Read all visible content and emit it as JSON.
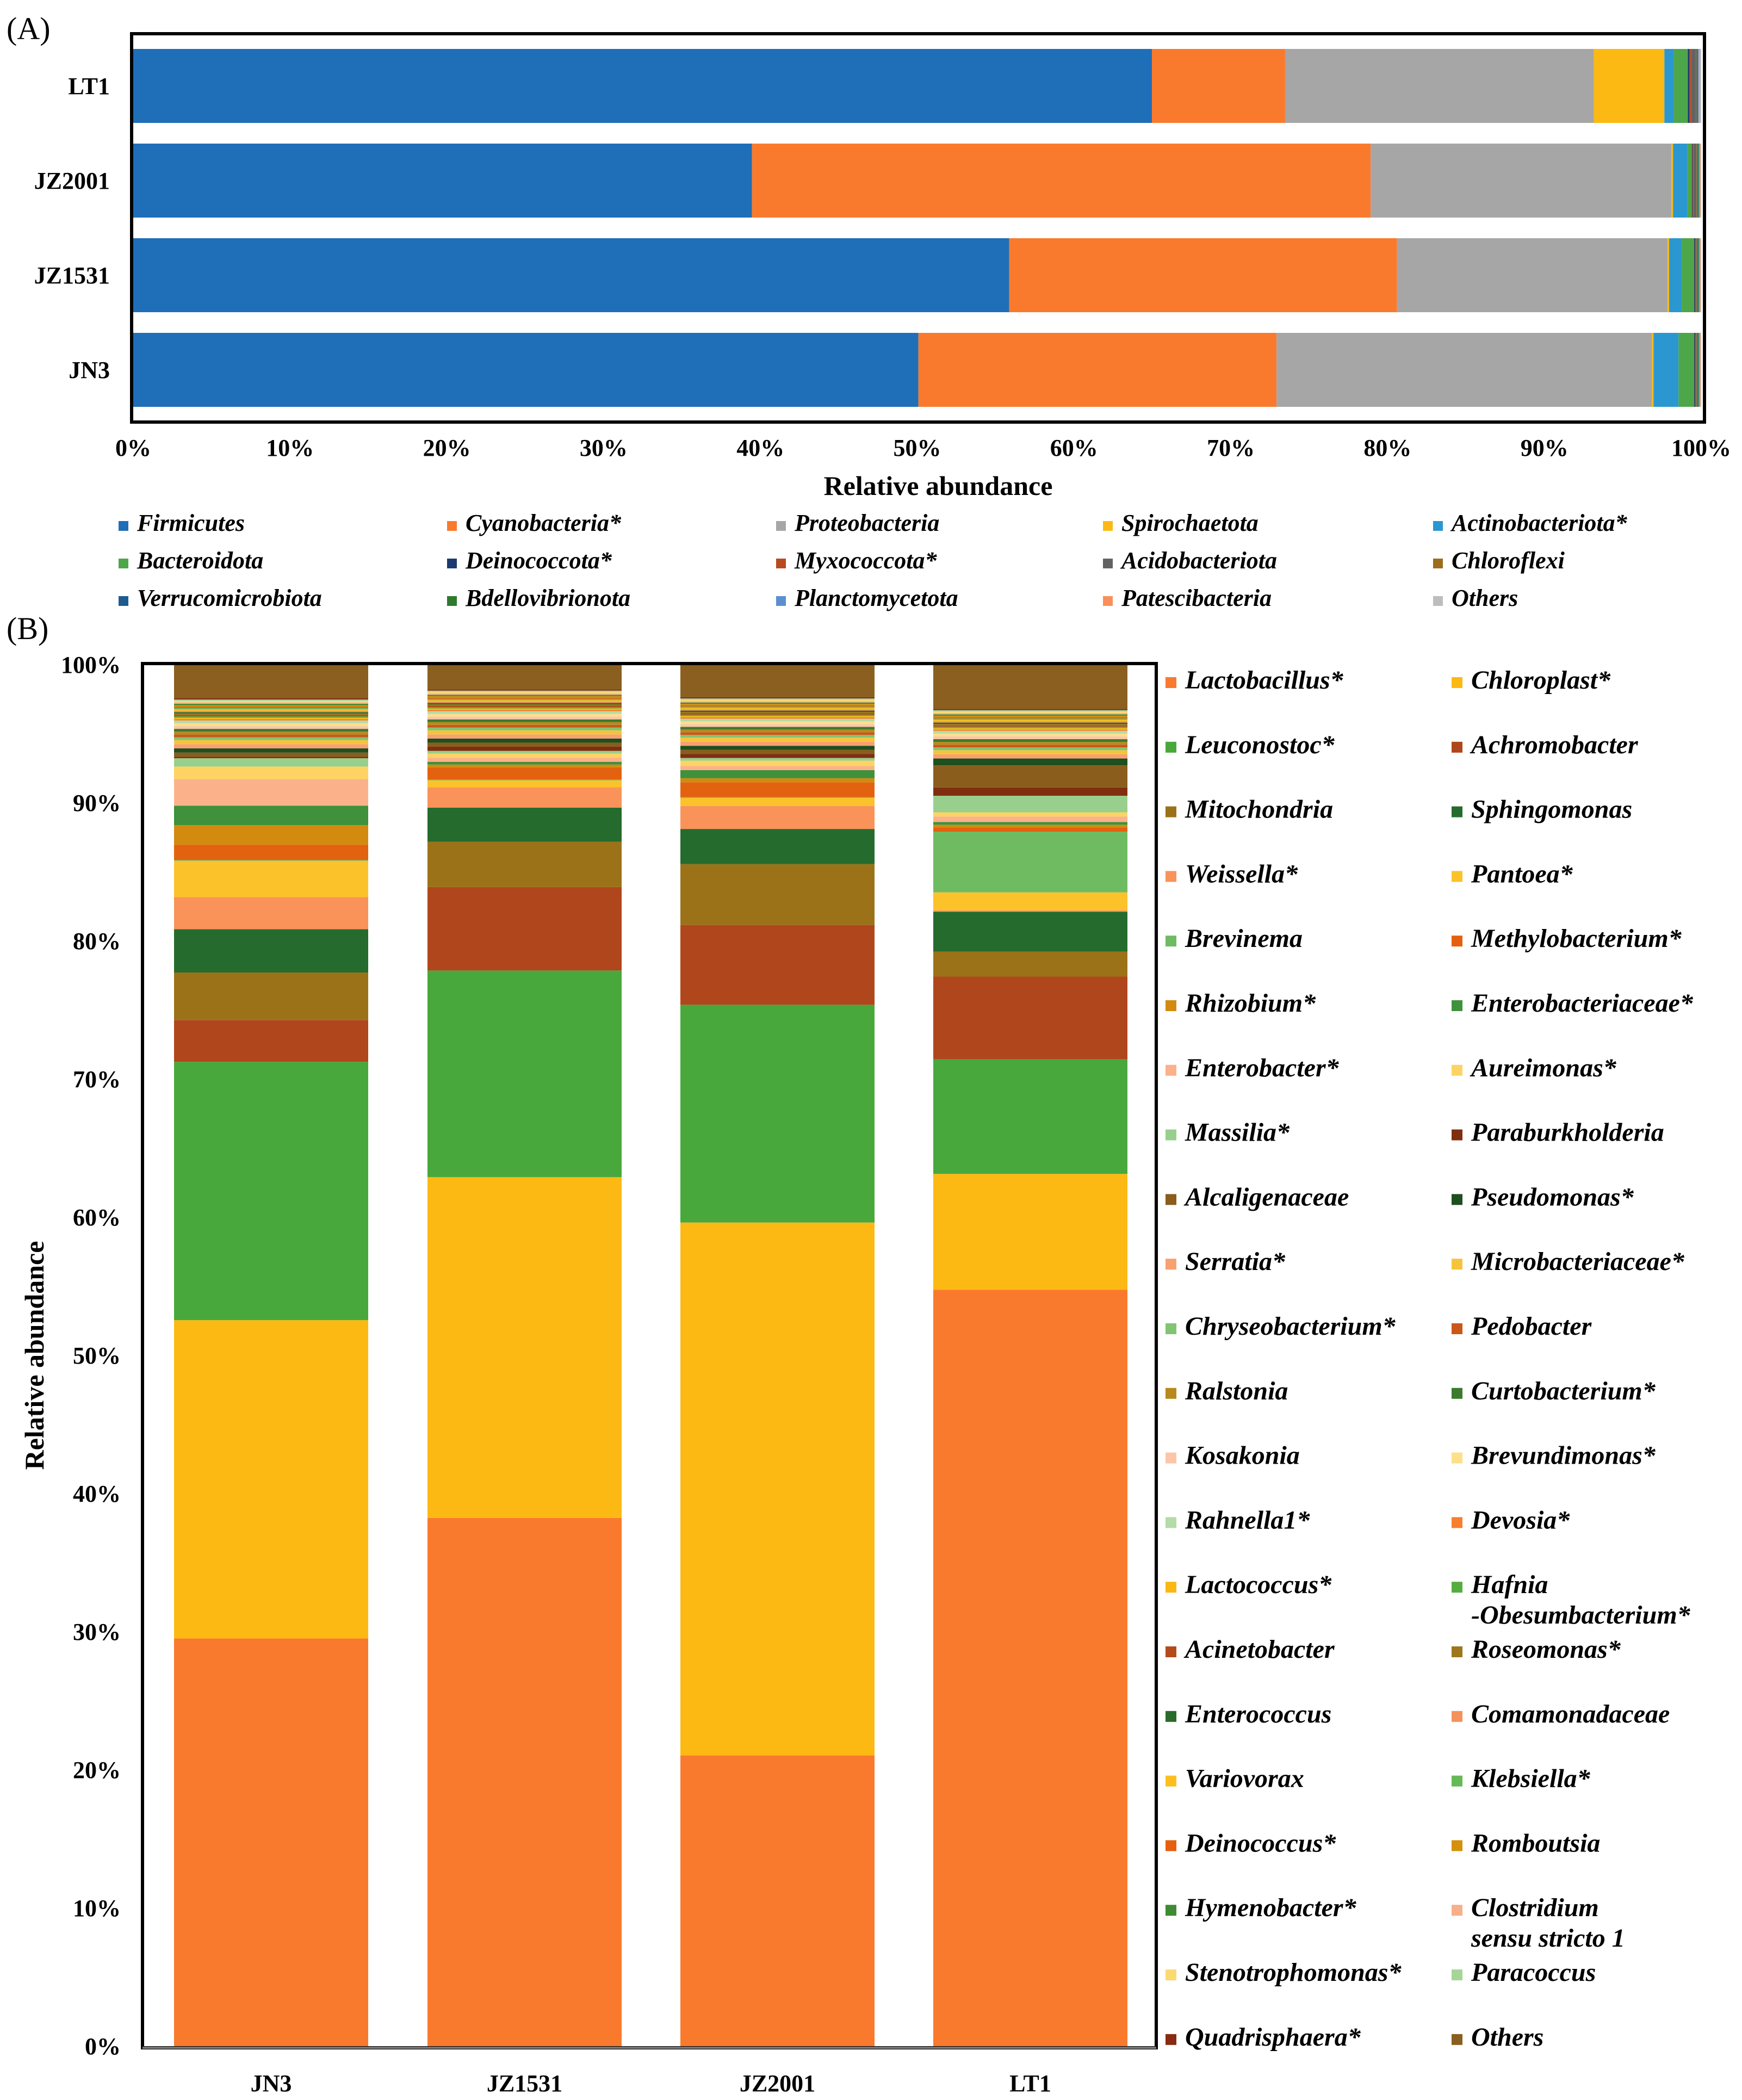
{
  "chart_data": [
    {
      "panel": "(A)",
      "type": "bar",
      "orientation": "horizontal",
      "stacked": true,
      "xlabel": "Relative abundance",
      "xlim": [
        0,
        100
      ],
      "xticks": [
        "0%",
        "10%",
        "20%",
        "30%",
        "40%",
        "50%",
        "60%",
        "70%",
        "80%",
        "90%",
        "100%"
      ],
      "categories": [
        "LT1",
        "JZ2001",
        "JZ1531",
        "JN3"
      ],
      "series": [
        {
          "name": "Firmicutes",
          "color": "#1f6eb8",
          "values": [
            65.0,
            39.5,
            56.0,
            50.2
          ]
        },
        {
          "name": "Cyanobacteria*",
          "color": "#f97a2d",
          "values": [
            8.5,
            39.5,
            24.8,
            22.9
          ]
        },
        {
          "name": "Proteobacteria",
          "color": "#a6a6a6",
          "values": [
            19.7,
            19.2,
            17.3,
            24.0
          ]
        },
        {
          "name": "Spirochaetota",
          "color": "#fdb913",
          "values": [
            4.5,
            0.1,
            0.1,
            0.1
          ]
        },
        {
          "name": "Actinobacteriota*",
          "color": "#2b97d1",
          "values": [
            0.6,
            0.9,
            0.8,
            1.6
          ]
        },
        {
          "name": "Bacteroidota",
          "color": "#4ea64a",
          "values": [
            0.9,
            0.3,
            0.8,
            1.0
          ]
        },
        {
          "name": "Deinococcota*",
          "color": "#1b3b6f",
          "values": [
            0.1,
            0.05,
            0.05,
            0.05
          ]
        },
        {
          "name": "Myxococcota*",
          "color": "#b84a1f",
          "values": [
            0.1,
            0.05,
            0.05,
            0.05
          ]
        },
        {
          "name": "Acidobacteriota",
          "color": "#636363",
          "values": [
            0.3,
            0.2,
            0.05,
            0.05
          ]
        },
        {
          "name": "Chloroflexi",
          "color": "#9b6d1c",
          "values": [
            0.05,
            0.05,
            0.05,
            0.05
          ]
        },
        {
          "name": "Verrucomicrobiota",
          "color": "#1e5c8f",
          "values": [
            0.05,
            0.05,
            0.05,
            0.05
          ]
        },
        {
          "name": "Bdellovibrionota",
          "color": "#2e7a2e",
          "values": [
            0.05,
            0.05,
            0.05,
            0.05
          ]
        },
        {
          "name": "Planctomycetota",
          "color": "#5b8fd0",
          "values": [
            0.05,
            0.05,
            0.05,
            0.05
          ]
        },
        {
          "name": "Patescibacteria",
          "color": "#fb8f5a",
          "values": [
            0.05,
            0.05,
            0.05,
            0.05
          ]
        },
        {
          "name": "Others",
          "color": "#bdbdbd",
          "values": [
            0.1,
            0.05,
            0.05,
            0.05
          ]
        }
      ]
    },
    {
      "panel": "(B)",
      "type": "bar",
      "orientation": "vertical",
      "stacked": true,
      "ylabel": "Relative abundance",
      "ylim": [
        0,
        100
      ],
      "yticks": [
        "0%",
        "10%",
        "20%",
        "30%",
        "40%",
        "50%",
        "60%",
        "70%",
        "80%",
        "90%",
        "100%"
      ],
      "categories": [
        "JN3",
        "JZ1531",
        "JZ2001",
        "LT1"
      ],
      "series": [
        {
          "name": "Lactobacillus*",
          "color": "#f97a2d",
          "values": [
            29.2,
            38.6,
            21.5,
            54.8
          ]
        },
        {
          "name": "Chloroplast*",
          "color": "#fdb913",
          "values": [
            22.8,
            24.9,
            39.4,
            8.4
          ]
        },
        {
          "name": "Leuconostoc*",
          "color": "#48a83c",
          "values": [
            18.5,
            15.1,
            16.1,
            8.3
          ]
        },
        {
          "name": "Achromobacter",
          "color": "#b0461c",
          "values": [
            3.0,
            6.1,
            5.9,
            6.0
          ]
        },
        {
          "name": "Mitochondria",
          "color": "#9c7218",
          "values": [
            3.4,
            3.3,
            4.5,
            1.8
          ]
        },
        {
          "name": "Sphingomonas",
          "color": "#256b2e",
          "values": [
            3.1,
            2.5,
            2.6,
            2.9
          ]
        },
        {
          "name": "Weissella*",
          "color": "#fa935a",
          "values": [
            2.3,
            1.5,
            1.7,
            0.1
          ]
        },
        {
          "name": "Pantoea*",
          "color": "#fcc22a",
          "values": [
            2.6,
            0.5,
            0.6,
            1.3
          ]
        },
        {
          "name": "Brevinema",
          "color": "#6fbb62",
          "values": [
            0.05,
            0.05,
            0.05,
            4.4
          ]
        },
        {
          "name": "Methylobacterium*",
          "color": "#e3620f",
          "values": [
            1.1,
            0.9,
            1.1,
            0.3
          ]
        },
        {
          "name": "Rhizobium*",
          "color": "#d28b0f",
          "values": [
            1.4,
            0.2,
            0.3,
            0.2
          ]
        },
        {
          "name": "Enterobacteriaceae*",
          "color": "#3f913b",
          "values": [
            1.4,
            0.2,
            0.6,
            0.2
          ]
        },
        {
          "name": "Enterobacter*",
          "color": "#fbb28b",
          "values": [
            1.9,
            0.3,
            0.3,
            0.4
          ]
        },
        {
          "name": "Aureimonas*",
          "color": "#fdd464",
          "values": [
            0.9,
            0.3,
            0.4,
            0.3
          ]
        },
        {
          "name": "Massilia*",
          "color": "#99cf8d",
          "values": [
            0.6,
            0.2,
            0.2,
            1.2
          ]
        },
        {
          "name": "Paraburkholderia",
          "color": "#7f2e10",
          "values": [
            0.1,
            0.3,
            0.3,
            0.6
          ]
        },
        {
          "name": "Alcaligenaceae",
          "color": "#8a5d1c",
          "values": [
            0.3,
            0.3,
            0.3,
            1.6
          ]
        },
        {
          "name": "Pseudomonas*",
          "color": "#1e4f1e",
          "values": [
            0.3,
            0.3,
            0.3,
            0.5
          ]
        },
        {
          "name": "Serratia*",
          "color": "#f9a070",
          "values": [
            0.3,
            0.3,
            0.3,
            0.3
          ]
        },
        {
          "name": "Microbacteriaceae*",
          "color": "#f6c43c",
          "values": [
            0.3,
            0.3,
            0.3,
            0.3
          ]
        },
        {
          "name": "Chryseobacterium*",
          "color": "#82c474",
          "values": [
            0.2,
            0.2,
            0.2,
            0.2
          ]
        },
        {
          "name": "Pedobacter",
          "color": "#c9581a",
          "values": [
            0.2,
            0.2,
            0.2,
            0.2
          ]
        },
        {
          "name": "Ralstonia",
          "color": "#b88a1e",
          "values": [
            0.2,
            0.2,
            0.2,
            0.2
          ]
        },
        {
          "name": "Curtobacterium*",
          "color": "#3c7a2e",
          "values": [
            0.2,
            0.2,
            0.2,
            0.2
          ]
        },
        {
          "name": "Kosakonia",
          "color": "#fcc6a8",
          "values": [
            0.2,
            0.2,
            0.2,
            0.2
          ]
        },
        {
          "name": "Brevundimonas*",
          "color": "#fde08a",
          "values": [
            0.2,
            0.2,
            0.2,
            0.2
          ]
        },
        {
          "name": "Rahnella1*",
          "color": "#b4dca8",
          "values": [
            0.2,
            0.2,
            0.2,
            0.2
          ]
        },
        {
          "name": "Devosia*",
          "color": "#f77f2e",
          "values": [
            0.1,
            0.1,
            0.1,
            0.1
          ]
        },
        {
          "name": "Lactococcus*",
          "color": "#fbb812",
          "values": [
            0.1,
            0.1,
            0.1,
            0.1
          ]
        },
        {
          "name": "Hafnia-Obesumbacterium*",
          "color": "#56ad3f",
          "values": [
            0.1,
            0.1,
            0.1,
            0.1
          ]
        },
        {
          "name": "Acinetobacter",
          "color": "#b44b1c",
          "values": [
            0.1,
            0.1,
            0.1,
            0.1
          ]
        },
        {
          "name": "Roseomonas*",
          "color": "#9e761c",
          "values": [
            0.1,
            0.1,
            0.1,
            0.1
          ]
        },
        {
          "name": "Enterococcus",
          "color": "#2a6a2a",
          "values": [
            0.1,
            0.1,
            0.1,
            0.1
          ]
        },
        {
          "name": "Comamonadaceae",
          "color": "#f5915b",
          "values": [
            0.1,
            0.1,
            0.1,
            0.1
          ]
        },
        {
          "name": "Variovorax",
          "color": "#fcbf1f",
          "values": [
            0.1,
            0.1,
            0.1,
            0.1
          ]
        },
        {
          "name": "Klebsiella*",
          "color": "#66b957",
          "values": [
            0.1,
            0.1,
            0.1,
            0.1
          ]
        },
        {
          "name": "Deinococcus*",
          "color": "#e65f10",
          "values": [
            0.1,
            0.1,
            0.1,
            0.1
          ]
        },
        {
          "name": "Romboutsia",
          "color": "#d4910d",
          "values": [
            0.1,
            0.1,
            0.1,
            0.1
          ]
        },
        {
          "name": "Hymenobacter*",
          "color": "#3d8c32",
          "values": [
            0.1,
            0.1,
            0.1,
            0.1
          ]
        },
        {
          "name": "Clostridium sensu stricto 1",
          "color": "#f7b08a",
          "values": [
            0.1,
            0.1,
            0.1,
            0.1
          ]
        },
        {
          "name": "Stenotrophomonas*",
          "color": "#fdd971",
          "values": [
            0.1,
            0.1,
            0.1,
            0.1
          ]
        },
        {
          "name": "Paracoccus",
          "color": "#a5d698",
          "values": [
            0.1,
            0.1,
            0.1,
            0.1
          ]
        },
        {
          "name": "Quadrisphaera*",
          "color": "#8a2a12",
          "values": [
            0.1,
            0.1,
            0.1,
            0.1
          ]
        },
        {
          "name": "Others",
          "color": "#8a5f1f",
          "values": [
            2.4,
            1.8,
            2.4,
            3.2
          ]
        }
      ]
    }
  ],
  "panel_b_legend_display": {
    "hafnia_line1": "Hafnia",
    "hafnia_line2": "-Obesumbacterium*",
    "clostridium_line1": "Clostridium",
    "clostridium_line2": "sensu stricto 1"
  }
}
